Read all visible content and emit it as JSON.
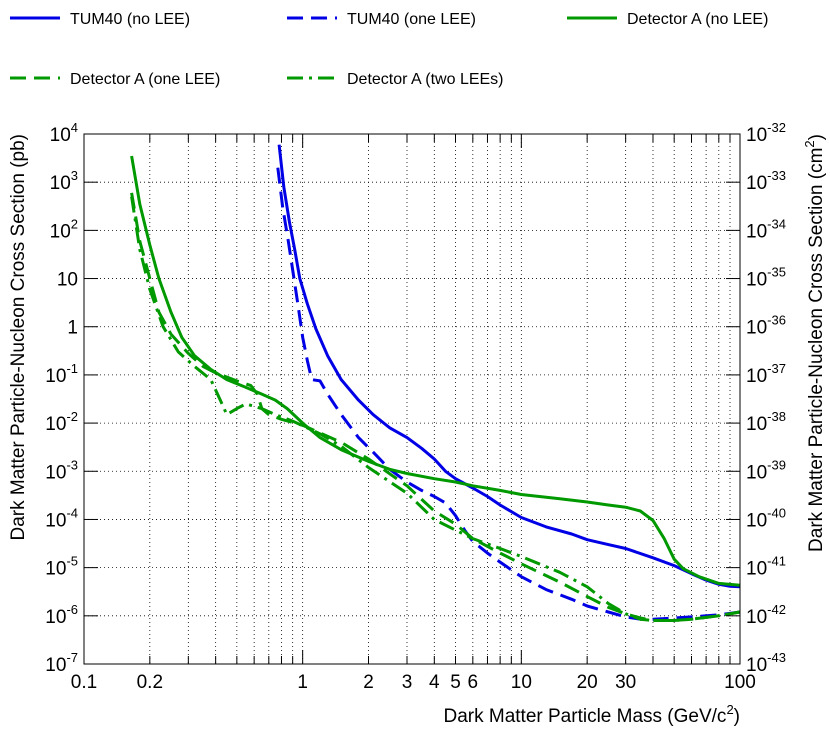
{
  "chart_data": {
    "type": "line",
    "xlabel": {
      "main": "Dark Matter Particle Mass (GeV/c",
      "sup": "2",
      "end": ")"
    },
    "ylabel_left": "Dark Matter Particle-Nucleon Cross Section (pb)",
    "ylabel_right": {
      "main": "Dark Matter Particle-Nucleon Cross Section (cm",
      "sup": "2",
      "end": ")"
    },
    "x_scale": "log",
    "y_scale": "log",
    "xlim": [
      0.1,
      100
    ],
    "ylim": [
      1e-07,
      10000
    ],
    "ylim_right": [
      1e-43,
      1e-32
    ],
    "grid": true,
    "legend_position": "top",
    "x_tick_labels": [
      {
        "v": 0.1,
        "t": "0.1"
      },
      {
        "v": 0.2,
        "t": "0.2"
      },
      {
        "v": 1,
        "t": "1"
      },
      {
        "v": 2,
        "t": "2"
      },
      {
        "v": 3,
        "t": "3"
      },
      {
        "v": 4,
        "t": "4"
      },
      {
        "v": 5,
        "t": "5"
      },
      {
        "v": 6,
        "t": "6"
      },
      {
        "v": 10,
        "t": "10"
      },
      {
        "v": 20,
        "t": "20"
      },
      {
        "v": 30,
        "t": "30"
      },
      {
        "v": 100,
        "t": "100"
      }
    ],
    "y_tick_labels": [
      {
        "e": -7,
        "base": "10",
        "sup": "-7"
      },
      {
        "e": -6,
        "base": "10",
        "sup": "-6"
      },
      {
        "e": -5,
        "base": "10",
        "sup": "-5"
      },
      {
        "e": -4,
        "base": "10",
        "sup": "-4"
      },
      {
        "e": -3,
        "base": "10",
        "sup": "-3"
      },
      {
        "e": -2,
        "base": "10",
        "sup": "-2"
      },
      {
        "e": -1,
        "base": "10",
        "sup": "-1"
      },
      {
        "e": 0,
        "base": "1",
        "sup": ""
      },
      {
        "e": 1,
        "base": "10",
        "sup": ""
      },
      {
        "e": 2,
        "base": "10",
        "sup": "2"
      },
      {
        "e": 3,
        "base": "10",
        "sup": "3"
      },
      {
        "e": 4,
        "base": "10",
        "sup": "4"
      }
    ],
    "y_right_tick_labels": [
      {
        "sup": "-43"
      },
      {
        "sup": "-42"
      },
      {
        "sup": "-41"
      },
      {
        "sup": "-40"
      },
      {
        "sup": "-39"
      },
      {
        "sup": "-38"
      },
      {
        "sup": "-37"
      },
      {
        "sup": "-36"
      },
      {
        "sup": "-35"
      },
      {
        "sup": "-34"
      },
      {
        "sup": "-33"
      },
      {
        "sup": "-32"
      }
    ],
    "y_right_base": "10",
    "series": [
      {
        "name": "TUM40 (no LEE)",
        "color": "#0000e6",
        "dash": "solid",
        "points": [
          [
            0.78,
            6000
          ],
          [
            0.82,
            800
          ],
          [
            0.87,
            150
          ],
          [
            0.92,
            40
          ],
          [
            0.97,
            10
          ],
          [
            1.05,
            3
          ],
          [
            1.15,
            0.9
          ],
          [
            1.3,
            0.25
          ],
          [
            1.5,
            0.08
          ],
          [
            1.8,
            0.03
          ],
          [
            2.1,
            0.015
          ],
          [
            2.5,
            0.008
          ],
          [
            3,
            0.005
          ],
          [
            3.5,
            0.003
          ],
          [
            4,
            0.0018
          ],
          [
            4.5,
            0.001
          ],
          [
            5,
            0.0007
          ],
          [
            6,
            0.00045
          ],
          [
            7,
            0.0003
          ],
          [
            8,
            0.0002
          ],
          [
            10,
            0.00011
          ],
          [
            13,
            7e-05
          ],
          [
            17,
            5e-05
          ],
          [
            20,
            3.8e-05
          ],
          [
            25,
            3e-05
          ],
          [
            30,
            2.5e-05
          ],
          [
            40,
            1.6e-05
          ],
          [
            50,
            1.1e-05
          ],
          [
            60,
            7.5e-06
          ],
          [
            70,
            5.5e-06
          ],
          [
            80,
            4.5e-06
          ],
          [
            90,
            4.1e-06
          ],
          [
            100,
            4e-06
          ]
        ]
      },
      {
        "name": "TUM40 (one LEE)",
        "color": "#0000e6",
        "dash": "dashed",
        "points": [
          [
            0.77,
            2000
          ],
          [
            0.81,
            300
          ],
          [
            0.86,
            60
          ],
          [
            0.9,
            15
          ],
          [
            0.95,
            3
          ],
          [
            1.0,
            0.6
          ],
          [
            1.05,
            0.2
          ],
          [
            1.1,
            0.08
          ],
          [
            1.2,
            0.075
          ],
          [
            1.3,
            0.04
          ],
          [
            1.5,
            0.015
          ],
          [
            1.8,
            0.005
          ],
          [
            2.1,
            0.0025
          ],
          [
            2.5,
            0.0011
          ],
          [
            3,
            0.0006
          ],
          [
            3.5,
            0.0004
          ],
          [
            4,
            0.0003
          ],
          [
            4.5,
            0.00022
          ],
          [
            5,
            0.00012
          ],
          [
            5.5,
            6e-05
          ],
          [
            6,
            3.5e-05
          ],
          [
            7,
            2e-05
          ],
          [
            8,
            1.3e-05
          ],
          [
            10,
            6.5e-06
          ],
          [
            13,
            3.5e-06
          ],
          [
            17,
            2.2e-06
          ],
          [
            20,
            1.6e-06
          ],
          [
            25,
            1.2e-06
          ],
          [
            30,
            9.5e-07
          ],
          [
            35,
            8.5e-07
          ],
          [
            40,
            8.5e-07
          ],
          [
            50,
            9e-07
          ],
          [
            60,
            9.5e-07
          ],
          [
            80,
            1.05e-06
          ],
          [
            100,
            1.2e-06
          ]
        ]
      },
      {
        "name": "Detector A (no LEE)",
        "color": "#009900",
        "dash": "solid",
        "points": [
          [
            0.165,
            3500
          ],
          [
            0.18,
            350
          ],
          [
            0.2,
            50
          ],
          [
            0.22,
            10
          ],
          [
            0.25,
            2
          ],
          [
            0.28,
            0.6
          ],
          [
            0.32,
            0.25
          ],
          [
            0.38,
            0.13
          ],
          [
            0.45,
            0.08
          ],
          [
            0.55,
            0.055
          ],
          [
            0.65,
            0.04
          ],
          [
            0.75,
            0.03
          ],
          [
            0.85,
            0.02
          ],
          [
            1.0,
            0.01
          ],
          [
            1.2,
            0.005
          ],
          [
            1.5,
            0.0028
          ],
          [
            2,
            0.0016
          ],
          [
            2.5,
            0.0011
          ],
          [
            3,
            0.0009
          ],
          [
            4,
            0.0007
          ],
          [
            5,
            0.0006
          ],
          [
            6,
            0.0005
          ],
          [
            8,
            0.0004
          ],
          [
            10,
            0.00033
          ],
          [
            15,
            0.00027
          ],
          [
            20,
            0.00023
          ],
          [
            25,
            0.0002
          ],
          [
            30,
            0.00018
          ],
          [
            35,
            0.00015
          ],
          [
            40,
            9.5e-05
          ],
          [
            45,
            4e-05
          ],
          [
            50,
            1.5e-05
          ],
          [
            55,
            9.5e-06
          ],
          [
            65,
            6.5e-06
          ],
          [
            80,
            4.7e-06
          ],
          [
            100,
            4.3e-06
          ]
        ]
      },
      {
        "name": "Detector A (one LEE)",
        "color": "#009900",
        "dash": "dashed",
        "points": [
          [
            0.165,
            600
          ],
          [
            0.18,
            60
          ],
          [
            0.2,
            10
          ],
          [
            0.22,
            2
          ],
          [
            0.25,
            0.7
          ],
          [
            0.3,
            0.28
          ],
          [
            0.35,
            0.15
          ],
          [
            0.4,
            0.11
          ],
          [
            0.5,
            0.075
          ],
          [
            0.58,
            0.06
          ],
          [
            0.62,
            0.04
          ],
          [
            0.65,
            0.02
          ],
          [
            0.7,
            0.015
          ],
          [
            0.8,
            0.012
          ],
          [
            1.0,
            0.009
          ],
          [
            1.5,
            0.004
          ],
          [
            2,
            0.0018
          ],
          [
            3,
            0.0005
          ],
          [
            4,
            0.00015
          ],
          [
            5,
            8e-05
          ],
          [
            6,
            4e-05
          ],
          [
            8,
            2e-05
          ],
          [
            10,
            1.2e-05
          ],
          [
            15,
            5e-06
          ],
          [
            20,
            2.5e-06
          ],
          [
            25,
            1.5e-06
          ],
          [
            30,
            1.1e-06
          ],
          [
            35,
            9e-07
          ],
          [
            40,
            8e-07
          ],
          [
            50,
            8e-07
          ],
          [
            60,
            8.5e-07
          ],
          [
            80,
            1e-06
          ],
          [
            100,
            1.2e-06
          ]
        ]
      },
      {
        "name": "Detector A (two LEEs)",
        "color": "#009900",
        "dash": "dashdot",
        "points": [
          [
            0.165,
            500
          ],
          [
            0.18,
            40
          ],
          [
            0.2,
            6
          ],
          [
            0.23,
            1
          ],
          [
            0.27,
            0.3
          ],
          [
            0.32,
            0.15
          ],
          [
            0.38,
            0.08
          ],
          [
            0.42,
            0.03
          ],
          [
            0.45,
            0.015
          ],
          [
            0.5,
            0.02
          ],
          [
            0.55,
            0.025
          ],
          [
            0.65,
            0.02
          ],
          [
            0.75,
            0.015
          ],
          [
            0.9,
            0.011
          ],
          [
            1.2,
            0.006
          ],
          [
            1.5,
            0.0033
          ],
          [
            2,
            0.0012
          ],
          [
            3,
            0.00035
          ],
          [
            4,
            0.0001
          ],
          [
            5,
            6e-05
          ],
          [
            6,
            4e-05
          ],
          [
            8,
            2.5e-05
          ],
          [
            10,
            1.7e-05
          ],
          [
            15,
            8e-06
          ],
          [
            20,
            4e-06
          ],
          [
            25,
            1.8e-06
          ],
          [
            30,
            1.1e-06
          ],
          [
            35,
            8.5e-07
          ],
          [
            40,
            8e-07
          ],
          [
            50,
            8e-07
          ],
          [
            60,
            8.5e-07
          ],
          [
            80,
            1e-06
          ],
          [
            100,
            1.2e-06
          ]
        ]
      }
    ]
  }
}
